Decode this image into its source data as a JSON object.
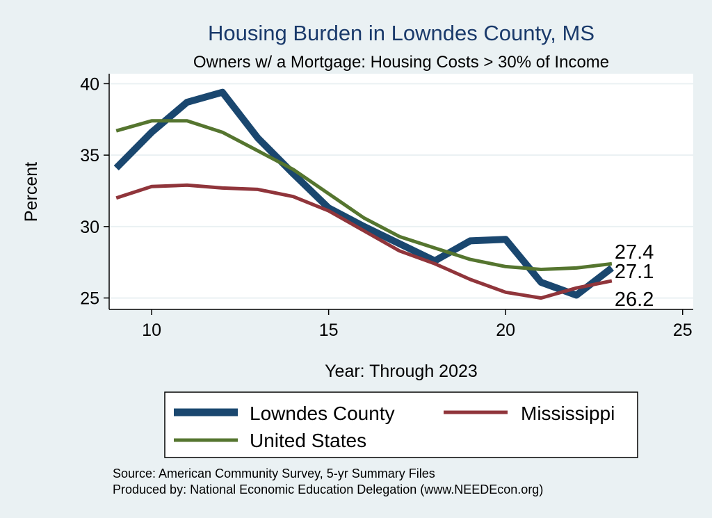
{
  "chart_data": {
    "type": "line",
    "title": "Housing Burden in Lowndes County, MS",
    "subtitle": "Owners w/ a Mortgage: Housing Costs > 30% of Income",
    "xlabel": "Year: Through 2023",
    "ylabel": "Percent",
    "xlim": [
      8.8,
      25.3
    ],
    "ylim": [
      24.2,
      40.7
    ],
    "xticks": [
      10,
      15,
      20,
      25
    ],
    "yticks": [
      25,
      30,
      35,
      40
    ],
    "x": [
      9,
      10,
      11,
      12,
      13,
      14,
      15,
      16,
      17,
      18,
      19,
      20,
      21,
      22,
      23
    ],
    "series": [
      {
        "name": "Lowndes County",
        "color": "#1a476f",
        "values": [
          34.1,
          36.6,
          38.7,
          39.4,
          36.2,
          33.7,
          31.3,
          30.0,
          28.8,
          27.6,
          29.0,
          29.1,
          26.1,
          25.2,
          27.1
        ],
        "end_label": "27.1"
      },
      {
        "name": "Mississippi",
        "color": "#90353b",
        "values": [
          32.0,
          32.8,
          32.9,
          32.7,
          32.6,
          32.1,
          31.1,
          29.7,
          28.3,
          27.4,
          26.3,
          25.4,
          25.0,
          25.7,
          26.2
        ],
        "end_label": "26.2"
      },
      {
        "name": "United States",
        "color": "#55752f",
        "values": [
          36.7,
          37.4,
          37.4,
          36.6,
          35.3,
          34.0,
          32.3,
          30.6,
          29.3,
          28.5,
          27.7,
          27.2,
          27.0,
          27.1,
          27.4
        ],
        "end_label": "27.4"
      }
    ],
    "grid": true,
    "legend_position": "bottom"
  },
  "legend": {
    "lowndes": "Lowndes County",
    "mississippi": "Mississippi",
    "us": "United States"
  },
  "footer": {
    "source": "Source: American Community Survey, 5-yr Summary Files",
    "produced": "Produced by: National Economic Education Delegation (www.NEEDEcon.org)"
  }
}
